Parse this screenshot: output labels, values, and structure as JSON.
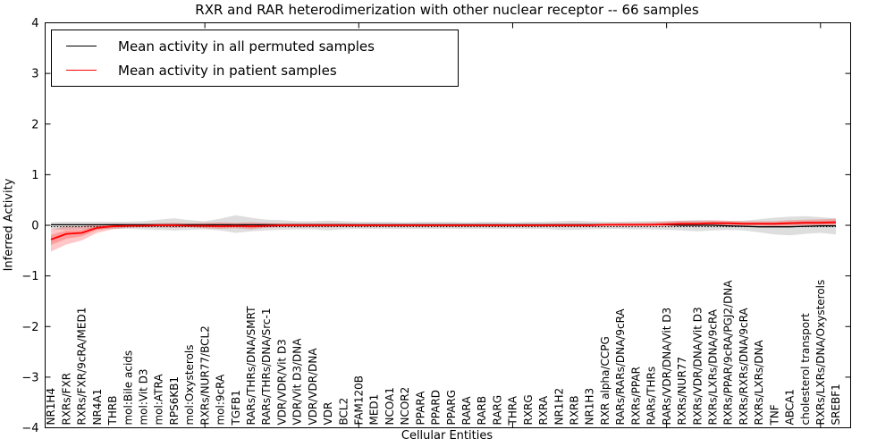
{
  "figure": {
    "title": "RXR and RAR heterodimerization with other nuclear receptor -- 66 samples",
    "xlabel": "Cellular Entities",
    "ylabel": "Inferred Activity"
  },
  "legend": {
    "entries": [
      {
        "label": "Mean activity in all permuted samples",
        "color": "#000000"
      },
      {
        "label": "Mean activity in patient samples",
        "color": "#ff0000"
      }
    ]
  },
  "chart_data": {
    "type": "line",
    "title": "RXR and RAR heterodimerization with other nuclear receptor -- 66 samples",
    "xlabel": "Cellular Entities",
    "ylabel": "Inferred Activity",
    "ylim": [
      -4,
      4
    ],
    "yticks": [
      4,
      3,
      2,
      1,
      0,
      -1,
      -2,
      -3,
      -4
    ],
    "ytick_labels": [
      "4",
      "3",
      "2",
      "1",
      "0",
      "−1",
      "−2",
      "−3",
      "−4"
    ],
    "grid": false,
    "legend_position": "upper left",
    "zero_line": 0,
    "categories": [
      "NR1H4",
      "RXRs/FXR",
      "RXRs/FXR/9cRA/MED1",
      "NR4A1",
      "THRB",
      "mol:Bile acids",
      "mol:Vit D3",
      "mol:ATRA",
      "RPS6KB1",
      "mol:Oxysterols",
      "RXRs/NUR77/BCL2",
      "mol:9cRA",
      "TGFB1",
      "RARs/THRs/DNA/SMRT",
      "RARs/THRs/DNA/Src-1",
      "VDR/VDR/Vit D3",
      "VDR/Vit D3/DNA",
      "VDR/VDR/DNA",
      "VDR",
      "BCL2",
      "FAM120B",
      "MED1",
      "NCOA1",
      "NCOR2",
      "PPARA",
      "PPARD",
      "PPARG",
      "RARA",
      "RARB",
      "RARG",
      "THRA",
      "RXRG",
      "RXRA",
      "NR1H2",
      "RXRB",
      "NR1H3",
      "RXR alpha/CCPG",
      "RARs/RARs/DNA/9cRA",
      "RXRs/PPAR",
      "RARs/THRs",
      "RARs/VDR/DNA/Vit D3",
      "RXRs/NUR77",
      "RXRs/VDR/DNA/Vit D3",
      "RXRs/LXRs/DNA/9cRA",
      "RXRs/PPAR/9cRA/PGJ2/DNA",
      "RXRs/RXRs/DNA/9cRA",
      "RXRs/LXRs/DNA",
      "TNF",
      "ABCA1",
      "cholesterol transport",
      "RXRs/LXRs/DNA/Oxysterols",
      "SREBF1"
    ],
    "series": [
      {
        "name": "Mean activity in all permuted samples",
        "color": "#000000",
        "band_color": "rgba(0,0,0,0.13)",
        "values": [
          0.01,
          0.01,
          0.01,
          0.01,
          0.01,
          0.01,
          0.01,
          0.01,
          0.01,
          0.01,
          0.01,
          0.01,
          0.01,
          0.01,
          0.01,
          0.01,
          0.01,
          0.01,
          0.01,
          0.01,
          0.01,
          0.01,
          0.01,
          0.01,
          0.01,
          0.01,
          0.01,
          0.01,
          0.01,
          0.01,
          0.01,
          0.01,
          0.01,
          0.01,
          0.01,
          0.01,
          0.01,
          0.01,
          0.01,
          0.01,
          0.01,
          0.0,
          0.0,
          0.0,
          -0.01,
          -0.02,
          -0.03,
          -0.03,
          -0.03,
          -0.02,
          -0.01,
          -0.01
        ],
        "band_high": [
          0.06,
          0.07,
          0.07,
          0.07,
          0.07,
          0.07,
          0.08,
          0.11,
          0.14,
          0.1,
          0.08,
          0.13,
          0.2,
          0.15,
          0.11,
          0.1,
          0.08,
          0.08,
          0.09,
          0.08,
          0.07,
          0.07,
          0.07,
          0.06,
          0.07,
          0.07,
          0.07,
          0.06,
          0.07,
          0.07,
          0.06,
          0.07,
          0.07,
          0.08,
          0.09,
          0.08,
          0.07,
          0.07,
          0.08,
          0.08,
          0.08,
          0.09,
          0.1,
          0.09,
          0.08,
          0.09,
          0.12,
          0.15,
          0.17,
          0.18,
          0.16,
          0.14
        ],
        "band_low": [
          -0.08,
          -0.09,
          -0.08,
          -0.08,
          -0.07,
          -0.07,
          -0.08,
          -0.09,
          -0.1,
          -0.09,
          -0.08,
          -0.1,
          -0.15,
          -0.12,
          -0.1,
          -0.09,
          -0.08,
          -0.08,
          -0.1,
          -0.08,
          -0.07,
          -0.07,
          -0.07,
          -0.07,
          -0.07,
          -0.07,
          -0.07,
          -0.07,
          -0.07,
          -0.07,
          -0.07,
          -0.07,
          -0.07,
          -0.09,
          -0.09,
          -0.08,
          -0.07,
          -0.07,
          -0.08,
          -0.08,
          -0.09,
          -0.1,
          -0.12,
          -0.1,
          -0.09,
          -0.1,
          -0.14,
          -0.18,
          -0.2,
          -0.17,
          -0.15,
          -0.18
        ]
      },
      {
        "name": "Mean activity in patient samples",
        "color": "#ff0000",
        "band_color": "rgba(255,0,0,0.22)",
        "values": [
          -0.28,
          -0.17,
          -0.15,
          -0.05,
          -0.02,
          -0.01,
          -0.01,
          0.0,
          0.0,
          -0.01,
          -0.01,
          -0.02,
          -0.01,
          -0.02,
          -0.01,
          0.0,
          0.0,
          0.0,
          0.0,
          0.0,
          0.0,
          0.0,
          0.0,
          0.0,
          0.0,
          0.0,
          0.0,
          0.0,
          0.0,
          0.0,
          0.0,
          0.0,
          0.0,
          0.0,
          0.0,
          0.0,
          0.01,
          0.01,
          0.01,
          0.01,
          0.02,
          0.03,
          0.03,
          0.04,
          0.04,
          0.03,
          0.03,
          0.03,
          0.04,
          0.05,
          0.05,
          0.06
        ],
        "band_high": [
          -0.08,
          -0.02,
          -0.02,
          0.02,
          0.03,
          0.03,
          0.03,
          0.04,
          0.05,
          0.04,
          0.05,
          0.06,
          0.05,
          0.06,
          0.05,
          0.04,
          0.04,
          0.04,
          0.04,
          0.04,
          0.03,
          0.03,
          0.03,
          0.03,
          0.03,
          0.03,
          0.03,
          0.03,
          0.03,
          0.03,
          0.03,
          0.03,
          0.03,
          0.04,
          0.04,
          0.04,
          0.04,
          0.05,
          0.05,
          0.06,
          0.08,
          0.09,
          0.09,
          0.1,
          0.09,
          0.08,
          0.08,
          0.08,
          0.1,
          0.11,
          0.12,
          0.13
        ],
        "band_low": [
          -0.52,
          -0.38,
          -0.3,
          -0.15,
          -0.08,
          -0.05,
          -0.04,
          -0.04,
          -0.05,
          -0.04,
          -0.06,
          -0.07,
          -0.06,
          -0.08,
          -0.05,
          -0.04,
          -0.04,
          -0.04,
          -0.04,
          -0.03,
          -0.03,
          -0.03,
          -0.03,
          -0.03,
          -0.03,
          -0.03,
          -0.03,
          -0.03,
          -0.03,
          -0.03,
          -0.03,
          -0.03,
          -0.03,
          -0.03,
          -0.03,
          -0.03,
          -0.02,
          -0.02,
          -0.02,
          -0.02,
          -0.02,
          -0.02,
          -0.01,
          -0.01,
          -0.01,
          -0.01,
          -0.01,
          -0.02,
          -0.02,
          -0.01,
          -0.01,
          -0.02
        ]
      }
    ]
  }
}
